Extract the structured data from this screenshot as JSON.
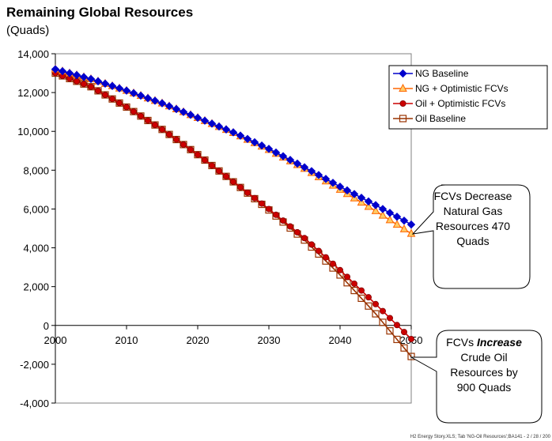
{
  "chart_data": {
    "type": "line",
    "title": "Remaining Global Resources",
    "subtitle": "(Quads)",
    "xlim": [
      2000,
      2050
    ],
    "ylim": [
      -4000,
      14000
    ],
    "x_ticks": [
      "2000",
      "2010",
      "2020",
      "2030",
      "2040",
      "2050"
    ],
    "y_ticks": [
      "14,000",
      "12,000",
      "10,000",
      "8,000",
      "6,000",
      "4,000",
      "2,000",
      "0",
      "-2,000",
      "-4,000"
    ],
    "legend_position": "top-right",
    "series": [
      {
        "name": "NG Baseline",
        "color": "#0000cc",
        "marker": "diamond",
        "x": [
          2000,
          2005,
          2010,
          2015,
          2020,
          2025,
          2030,
          2035,
          2040,
          2045,
          2050
        ],
        "values": [
          13200,
          12700,
          12100,
          11450,
          10700,
          9950,
          9100,
          8150,
          7150,
          6200,
          5200
        ]
      },
      {
        "name": "NG + Optimistic FCVs",
        "color": "#ff6600",
        "marker": "triangle",
        "x": [
          2000,
          2005,
          2010,
          2015,
          2020,
          2025,
          2030,
          2035,
          2040,
          2045,
          2050
        ],
        "values": [
          13200,
          12700,
          12100,
          11450,
          10700,
          9930,
          9050,
          8080,
          7000,
          5900,
          4730
        ]
      },
      {
        "name": "Oil + Optimistic FCVs",
        "color": "#cc0000",
        "marker": "circle",
        "x": [
          2000,
          2005,
          2010,
          2015,
          2020,
          2025,
          2030,
          2035,
          2040,
          2045,
          2050
        ],
        "values": [
          13000,
          12300,
          11250,
          10100,
          8800,
          7400,
          6000,
          4500,
          2850,
          1100,
          -700
        ]
      },
      {
        "name": "Oil Baseline",
        "color": "#993300",
        "marker": "square",
        "x": [
          2000,
          2005,
          2010,
          2015,
          2020,
          2025,
          2030,
          2035,
          2040,
          2045,
          2050
        ],
        "values": [
          13000,
          12300,
          11250,
          10100,
          8800,
          7400,
          5950,
          4400,
          2600,
          600,
          -1600
        ]
      }
    ],
    "annotations": [
      {
        "lines": [
          "FCVs Decrease",
          "Natural Gas",
          "Resources 470",
          "Quads"
        ]
      },
      {
        "before": "FCVs ",
        "emphasis": "Increase",
        "lines": [
          "Crude Oil",
          "Resources  by",
          "900 Quads"
        ]
      }
    ],
    "footer": "H2 Energy Story.XLS; Tab 'NG-Oil Resources';BA141 -  2 / 28 / 200"
  }
}
